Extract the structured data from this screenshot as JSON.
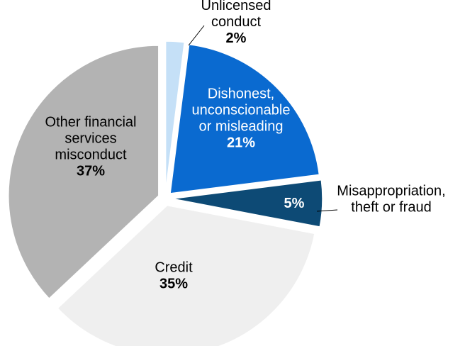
{
  "chart_data": {
    "type": "pie",
    "title": "",
    "start_angle_deg": 0,
    "direction": "clockwise",
    "legend": "none",
    "slices": [
      {
        "label_lines": [
          "Unlicensed",
          "conduct"
        ],
        "percent_label": "2%",
        "value": 2,
        "color": "#c5e0f7",
        "exploded": true
      },
      {
        "label_lines": [
          "Dishonest,",
          "unconscionable",
          "or misleading"
        ],
        "percent_label": "21%",
        "value": 21,
        "color": "#0a6ad0",
        "exploded": true
      },
      {
        "label_lines": [
          "Misappropriation,",
          "theft or fraud"
        ],
        "percent_label": "5%",
        "value": 5,
        "color": "#0d4a75",
        "exploded": true
      },
      {
        "label_lines": [
          "Credit"
        ],
        "percent_label": "35%",
        "value": 35,
        "color": "#efefef",
        "exploded": true
      },
      {
        "label_lines": [
          "Other financial",
          "services",
          "misconduct"
        ],
        "percent_label": "37%",
        "value": 37,
        "color": "#b3b3b3",
        "exploded": true
      }
    ]
  }
}
